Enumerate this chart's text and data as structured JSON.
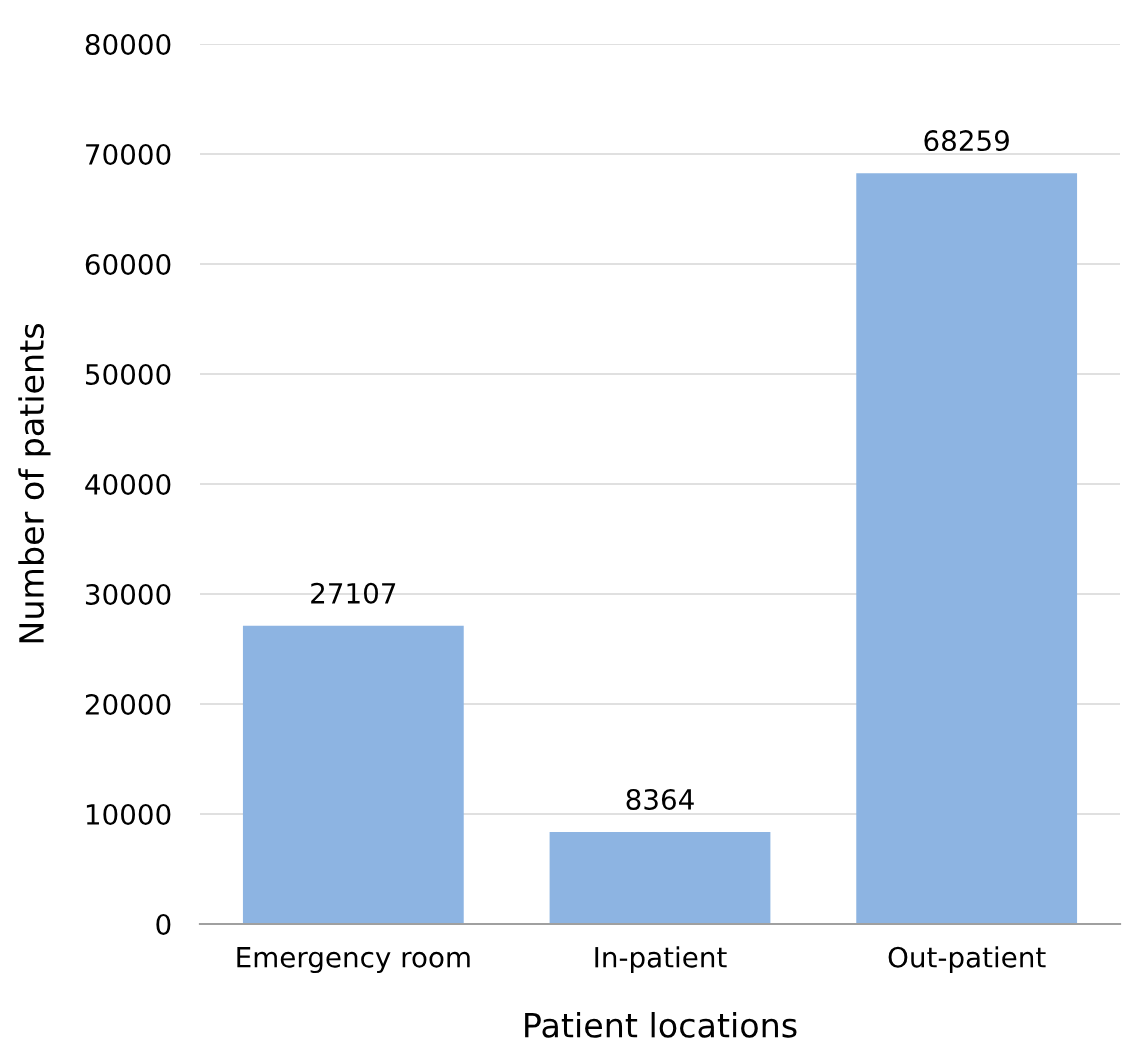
{
  "chart_data": {
    "type": "bar",
    "xlabel": "Patient locations",
    "ylabel": "Number of patients",
    "categories": [
      "Emergency room",
      "In-patient",
      "Out-patient"
    ],
    "values": [
      27107,
      8364,
      68259
    ],
    "color": "#8db4e2",
    "ylim": [
      0,
      80000
    ],
    "yticks": [
      0,
      10000,
      20000,
      30000,
      40000,
      50000,
      60000,
      70000,
      80000
    ],
    "grid": "y",
    "data_labels": true
  }
}
